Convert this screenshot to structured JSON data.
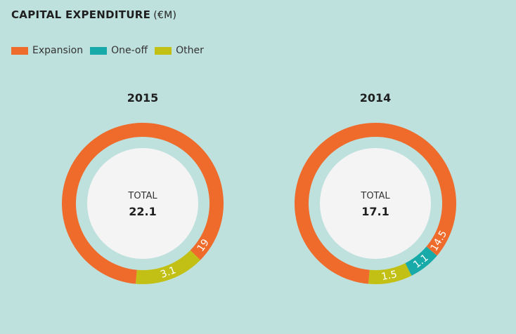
{
  "title": "CAPITAL EXPENDITURE",
  "unit": "(€M)",
  "legend": [
    {
      "label": "Expansion",
      "color": "#ee6b2b"
    },
    {
      "label": "One-off",
      "color": "#17aaa8"
    },
    {
      "label": "Other",
      "color": "#c2c015"
    }
  ],
  "center_label": "TOTAL",
  "chart_data": [
    {
      "type": "pie",
      "title": "2015",
      "total": "22.1",
      "series": [
        {
          "name": "Expansion",
          "value": 19,
          "label": "19"
        },
        {
          "name": "One-off",
          "value": 0,
          "label": ""
        },
        {
          "name": "Other",
          "value": 3.1,
          "label": "3.1"
        }
      ]
    },
    {
      "type": "pie",
      "title": "2014",
      "total": "17.1",
      "series": [
        {
          "name": "Expansion",
          "value": 14.5,
          "label": "14.5"
        },
        {
          "name": "One-off",
          "value": 1.1,
          "label": "1.1"
        },
        {
          "name": "Other",
          "value": 1.5,
          "label": "1.5"
        }
      ]
    }
  ]
}
